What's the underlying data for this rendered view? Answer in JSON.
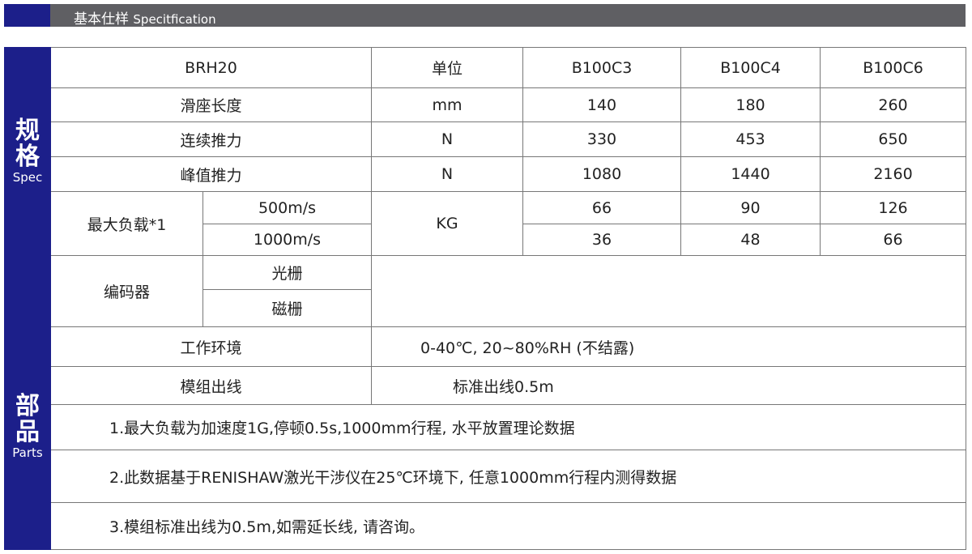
{
  "header": {
    "title_cn": "基本仕样",
    "title_en": "Specitfication"
  },
  "spec": {
    "side_cn": [
      "规",
      "格"
    ],
    "side_en": "Spec",
    "columns": [
      "BRH20",
      "单位",
      "B100C3",
      "B100C4",
      "B100C6"
    ],
    "rows": [
      {
        "label": "滑座长度",
        "unit": "mm",
        "values": [
          "140",
          "180",
          "260"
        ]
      },
      {
        "label": "连续推力",
        "unit": "N",
        "values": [
          "330",
          "453",
          "650"
        ]
      },
      {
        "label": "峰值推力",
        "unit": "N",
        "values": [
          "1080",
          "1440",
          "2160"
        ]
      }
    ],
    "max_load": {
      "label": "最大负载*1",
      "unit": "KG",
      "rows": [
        {
          "sub": "500m/s",
          "values": [
            "66",
            "90",
            "126"
          ]
        },
        {
          "sub": "1000m/s",
          "values": [
            "36",
            "48",
            "66"
          ]
        }
      ]
    }
  },
  "parts": {
    "side_cn": [
      "部",
      "品"
    ],
    "side_en": "Parts",
    "encoder": {
      "label": "编码器",
      "options": [
        "光栅",
        "磁栅"
      ]
    },
    "environment": {
      "label": "工作环境",
      "value": "0-40℃, 20~80%RH (不结露)"
    },
    "cable": {
      "label": "模组出线",
      "value": "标准出线0.5m"
    },
    "notes": [
      "1.最大负载为加速度1G,停顿0.5s,1000mm行程, 水平放置理论数据",
      "2.此数据基于RENISHAW激光干涉仪在25℃环境下, 任意1000mm行程内测得数据",
      "3.模组标准出线为0.5m,如需延长线, 请咨询。"
    ]
  }
}
